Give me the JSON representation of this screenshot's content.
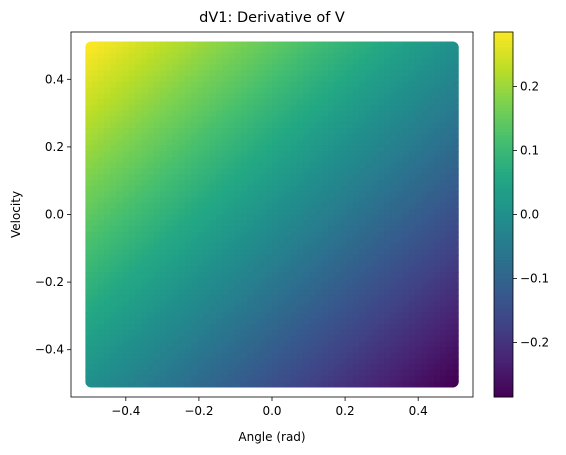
{
  "chart_data": {
    "type": "heatmap",
    "title": "dV1: Derivative of V",
    "xlabel": "Angle (rad)",
    "ylabel": "Velocity",
    "xlim": [
      -0.55,
      0.55
    ],
    "ylim": [
      -0.54,
      0.54
    ],
    "x_range": [
      -0.5,
      0.5
    ],
    "y_range": [
      -0.5,
      0.5
    ],
    "x_ticks": [
      -0.4,
      -0.2,
      0.0,
      0.2,
      0.4
    ],
    "x_tick_labels": [
      "−0.4",
      "−0.2",
      "0.0",
      "0.2",
      "0.4"
    ],
    "y_ticks": [
      -0.4,
      -0.2,
      0.0,
      0.2,
      0.4
    ],
    "y_tick_labels": [
      "−0.4",
      "−0.2",
      "0.0",
      "0.2",
      "0.4"
    ],
    "colormap": "viridis",
    "colorbar": {
      "range": [
        -0.285,
        0.285
      ],
      "ticks": [
        -0.2,
        -0.1,
        0.0,
        0.1,
        0.2
      ],
      "tick_labels": [
        "−0.2",
        "−0.1",
        "0.0",
        "0.1",
        "0.2"
      ]
    },
    "corner_values": {
      "top_left": 0.285,
      "top_right": 0.0,
      "bottom_left": 0.0,
      "bottom_right": -0.285
    },
    "model": "value = -0.285 * x + 0.285 * y (approx, x=angle, y=velocity)",
    "grid": false
  }
}
